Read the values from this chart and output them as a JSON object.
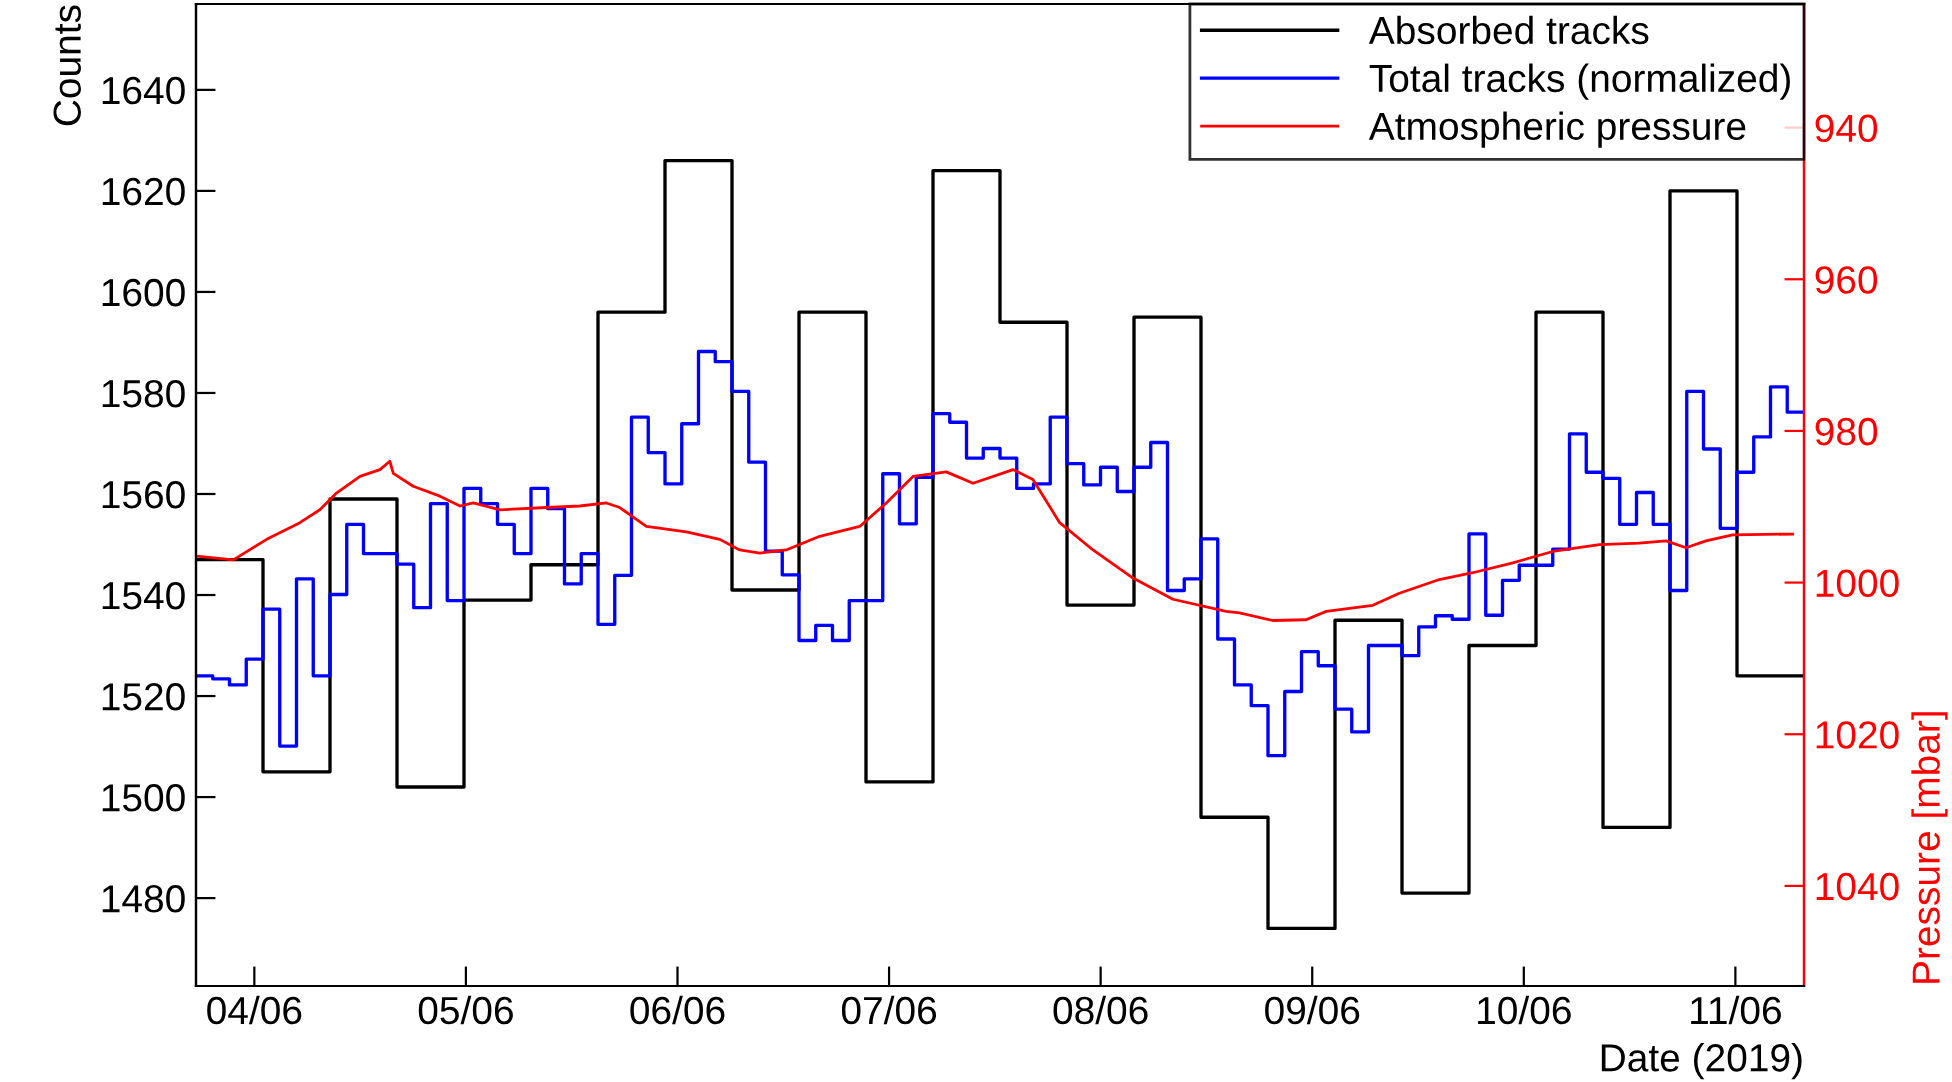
{
  "chart_data": {
    "type": "step",
    "xlabel": "Date (2019)",
    "ylabel": "Counts",
    "y2label": "Pressure [mbar]",
    "xlim": [
      "2019-06-03T17:23",
      "2019-06-11T07:47"
    ],
    "xticks": [
      {
        "value": "2019-06-04",
        "label": "04/06"
      },
      {
        "value": "2019-06-05",
        "label": "05/06"
      },
      {
        "value": "2019-06-06",
        "label": "06/06"
      },
      {
        "value": "2019-06-07",
        "label": "07/06"
      },
      {
        "value": "2019-06-08",
        "label": "08/06"
      },
      {
        "value": "2019-06-09",
        "label": "09/06"
      },
      {
        "value": "2019-06-10",
        "label": "10/06"
      },
      {
        "value": "2019-06-11",
        "label": "11/06"
      }
    ],
    "ylim": [
      1462.6,
      1657
    ],
    "yticks": [
      1480,
      1500,
      1520,
      1540,
      1560,
      1580,
      1600,
      1620,
      1640
    ],
    "y2lim": [
      1053.2,
      923.7
    ],
    "y2ticks": [
      940,
      960,
      980,
      1000,
      1020,
      1040
    ],
    "legend": "top right",
    "grid": false,
    "series": [
      {
        "name": "Absorbed tracks",
        "color": "#000000",
        "x": [
          "2019-06-03T17:23",
          "2019-06-04T00:59",
          "2019-06-04T08:35",
          "2019-06-04T16:11",
          "2019-06-04T23:47",
          "2019-06-05T07:23",
          "2019-06-05T14:59",
          "2019-06-05T22:35",
          "2019-06-06T06:11",
          "2019-06-06T13:47",
          "2019-06-06T21:23",
          "2019-06-07T04:59",
          "2019-06-07T12:35",
          "2019-06-07T20:11",
          "2019-06-08T03:47",
          "2019-06-08T11:23",
          "2019-06-08T18:59",
          "2019-06-09T02:35",
          "2019-06-09T10:11",
          "2019-06-09T17:47",
          "2019-06-10T01:23",
          "2019-06-10T08:59",
          "2019-06-10T16:35",
          "2019-06-11T00:11",
          "2019-06-11T07:47"
        ],
        "values": [
          1547,
          1505,
          1559,
          1502,
          1539,
          1546,
          1596,
          1626,
          1541,
          1596,
          1503,
          1624,
          1594,
          1538,
          1595,
          1496,
          1474,
          1535,
          1481,
          1530,
          1596,
          1494,
          1620,
          1524,
          1524
        ]
      },
      {
        "name": "Total tracks (normalized)",
        "color": "#0000ff",
        "x": [
          "2019-06-03T17:23",
          "2019-06-03T19:17",
          "2019-06-03T21:11",
          "2019-06-03T23:05",
          "2019-06-04T00:59",
          "2019-06-04T02:53",
          "2019-06-04T04:47",
          "2019-06-04T06:41",
          "2019-06-04T08:35",
          "2019-06-04T10:29",
          "2019-06-04T12:23",
          "2019-06-04T14:17",
          "2019-06-04T16:11",
          "2019-06-04T18:05",
          "2019-06-04T19:59",
          "2019-06-04T21:53",
          "2019-06-04T23:47",
          "2019-06-05T01:41",
          "2019-06-05T03:35",
          "2019-06-05T05:29",
          "2019-06-05T07:23",
          "2019-06-05T09:17",
          "2019-06-05T11:11",
          "2019-06-05T13:05",
          "2019-06-05T14:59",
          "2019-06-05T16:53",
          "2019-06-05T18:47",
          "2019-06-05T20:41",
          "2019-06-05T22:35",
          "2019-06-06T00:29",
          "2019-06-06T02:23",
          "2019-06-06T04:17",
          "2019-06-06T06:11",
          "2019-06-06T08:05",
          "2019-06-06T09:59",
          "2019-06-06T11:53",
          "2019-06-06T13:47",
          "2019-06-06T15:41",
          "2019-06-06T17:35",
          "2019-06-06T19:29",
          "2019-06-06T21:23",
          "2019-06-06T23:17",
          "2019-06-07T01:11",
          "2019-06-07T03:05",
          "2019-06-07T04:59",
          "2019-06-07T06:53",
          "2019-06-07T08:47",
          "2019-06-07T10:41",
          "2019-06-07T12:35",
          "2019-06-07T14:29",
          "2019-06-07T16:23",
          "2019-06-07T18:17",
          "2019-06-07T20:11",
          "2019-06-07T22:05",
          "2019-06-07T23:59",
          "2019-06-08T01:53",
          "2019-06-08T03:47",
          "2019-06-08T05:41",
          "2019-06-08T07:35",
          "2019-06-08T09:29",
          "2019-06-08T11:23",
          "2019-06-08T13:17",
          "2019-06-08T15:11",
          "2019-06-08T17:05",
          "2019-06-08T18:59",
          "2019-06-08T20:53",
          "2019-06-08T22:47",
          "2019-06-09T00:41",
          "2019-06-09T02:35",
          "2019-06-09T04:29",
          "2019-06-09T06:23",
          "2019-06-09T08:17",
          "2019-06-09T10:11",
          "2019-06-09T12:05",
          "2019-06-09T13:59",
          "2019-06-09T15:53",
          "2019-06-09T17:47",
          "2019-06-09T19:41",
          "2019-06-09T21:35",
          "2019-06-09T23:29",
          "2019-06-10T01:23",
          "2019-06-10T03:17",
          "2019-06-10T05:11",
          "2019-06-10T07:05",
          "2019-06-10T08:59",
          "2019-06-10T10:53",
          "2019-06-10T12:47",
          "2019-06-10T14:41",
          "2019-06-10T16:35",
          "2019-06-10T18:29",
          "2019-06-10T20:23",
          "2019-06-10T22:17",
          "2019-06-11T00:11",
          "2019-06-11T02:05",
          "2019-06-11T03:59",
          "2019-06-11T05:53",
          "2019-06-11T07:47"
        ],
        "values": [
          1524,
          1523.4,
          1522.2,
          1527.3,
          1537.2,
          1510.1,
          1543.2,
          1524,
          1540.1,
          1554,
          1548.2,
          1548.2,
          1546.1,
          1537.5,
          1558.1,
          1538.9,
          1561.1,
          1558.1,
          1554,
          1548.2,
          1561.1,
          1557.1,
          1542.2,
          1548.2,
          1534.2,
          1543.9,
          1575.2,
          1568.2,
          1562,
          1573.9,
          1588.2,
          1586.2,
          1580.3,
          1566.3,
          1548.7,
          1544,
          1531,
          1534,
          1531,
          1538.9,
          1538.9,
          1564,
          1554.1,
          1563.3,
          1575.9,
          1574.2,
          1567.1,
          1569,
          1567.1,
          1561.1,
          1562,
          1575.2,
          1566,
          1561.8,
          1565.3,
          1560.5,
          1565.3,
          1570.2,
          1540.9,
          1543.2,
          1551.1,
          1531.3,
          1522.2,
          1518.1,
          1508.2,
          1520.9,
          1528.8,
          1526,
          1517.4,
          1512.9,
          1530,
          1530,
          1528,
          1533.7,
          1535.9,
          1535.2,
          1552.1,
          1536,
          1542.9,
          1545.9,
          1545.9,
          1549.1,
          1571.9,
          1564.3,
          1563.1,
          1554,
          1560.3,
          1554,
          1540.9,
          1580.3,
          1568.9,
          1553.2,
          1564.3,
          1571.3,
          1581.2,
          1576.2,
          1576.2
        ]
      },
      {
        "name": "Atmospheric pressure",
        "type": "line",
        "axis": "y2",
        "color": "#ff0000",
        "x": [
          "2019-06-03T17:27",
          "2019-06-03T21:37",
          "2019-06-04T01:24",
          "2019-06-04T05:10",
          "2019-06-04T07:26",
          "2019-06-04T09:19",
          "2019-06-04T11:59",
          "2019-06-04T14:15",
          "2019-06-04T15:22",
          "2019-06-04T15:46",
          "2019-06-04T18:01",
          "2019-06-04T21:03",
          "2019-06-04T23:20",
          "2019-06-05T00:50",
          "2019-06-05T03:52",
          "2019-06-05T09:09",
          "2019-06-05T12:55",
          "2019-06-05T15:56",
          "2019-06-05T17:27",
          "2019-06-05T20:28",
          "2019-06-06T01:00",
          "2019-06-06T04:48",
          "2019-06-06T07:03",
          "2019-06-06T09:20",
          "2019-06-06T12:20",
          "2019-06-06T16:08",
          "2019-06-06T20:40",
          "2019-06-06T23:41",
          "2019-06-07T02:43",
          "2019-06-07T06:29",
          "2019-06-07T09:32",
          "2019-06-07T14:04",
          "2019-06-07T16:19",
          "2019-06-07T19:21",
          "2019-06-07T23:08",
          "2019-06-08T03:40",
          "2019-06-08T08:12",
          "2019-06-08T14:14",
          "2019-06-08T15:45",
          "2019-06-08T19:32",
          "2019-06-08T23:18",
          "2019-06-09T01:35",
          "2019-06-09T06:53",
          "2019-06-09T09:53",
          "2019-06-09T14:25",
          "2019-06-09T18:13",
          "2019-06-09T22:45",
          "2019-06-10T03:17",
          "2019-06-10T08:34",
          "2019-06-10T13:06",
          "2019-06-10T16:08",
          "2019-06-10T18:24",
          "2019-06-10T20:40",
          "2019-06-10T23:41",
          "2019-06-11T06:30"
        ],
        "values": [
          996.5,
          997,
          994.3,
          992.1,
          990.4,
          988.2,
          986,
          985.1,
          984,
          985.6,
          987.3,
          988.6,
          989.9,
          989.5,
          990.4,
          990.1,
          989.9,
          989.5,
          990.1,
          992.6,
          993.3,
          994.3,
          995.7,
          996.1,
          995.7,
          993.9,
          992.6,
          989.5,
          986,
          985.4,
          986.9,
          985.1,
          986.4,
          992.1,
          995.7,
          999.4,
          1002.2,
          1003.8,
          1004,
          1005,
          1004.9,
          1003.8,
          1003,
          1001.4,
          999.6,
          998.7,
          997.4,
          995.9,
          995,
          994.8,
          994.5,
          995.4,
          994.5,
          993.7,
          993.6
        ]
      }
    ]
  }
}
